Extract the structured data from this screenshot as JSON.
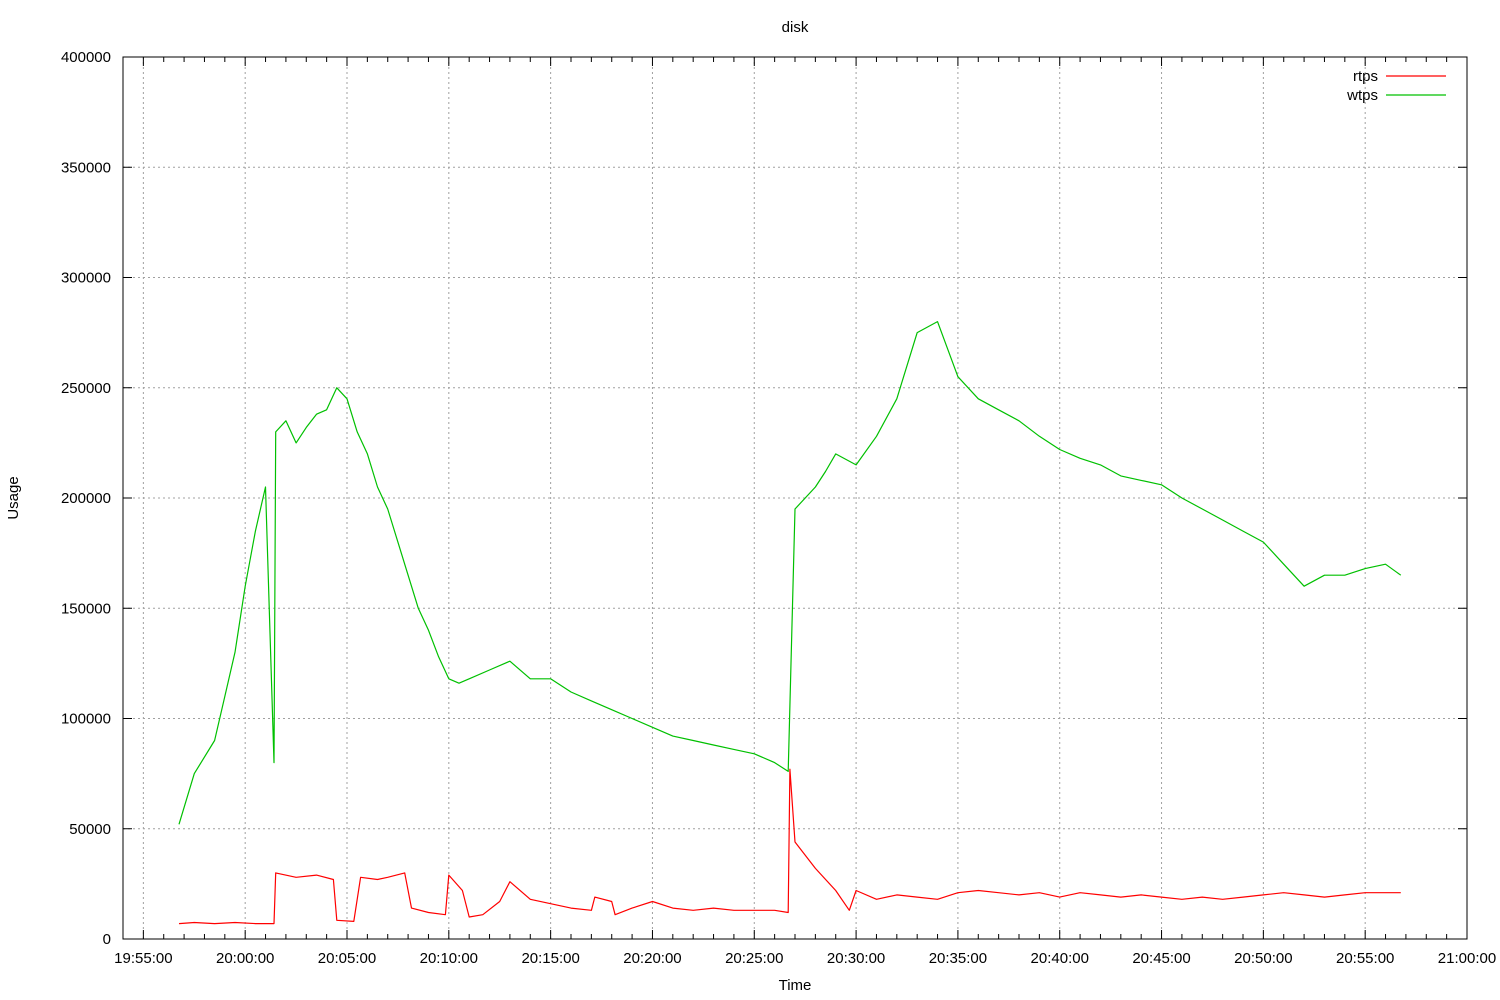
{
  "chart_data": {
    "type": "line",
    "title": "disk",
    "xlabel": "Time",
    "ylabel": "Usage",
    "xlim": [
      "19:54:00",
      "21:00:00"
    ],
    "ylim": [
      0,
      400000
    ],
    "x_ticks": [
      "19:55:00",
      "20:00:00",
      "20:05:00",
      "20:10:00",
      "20:15:00",
      "20:20:00",
      "20:25:00",
      "20:30:00",
      "20:35:00",
      "20:40:00",
      "20:45:00",
      "20:50:00",
      "20:55:00",
      "21:00:00"
    ],
    "y_ticks": [
      0,
      50000,
      100000,
      150000,
      200000,
      250000,
      300000,
      350000,
      400000
    ],
    "y_tick_labels": [
      "0",
      "50000",
      "100000",
      "150000",
      "200000",
      "250000",
      "300000",
      "350000",
      "400000"
    ],
    "grid": true,
    "legend_position": "top-right",
    "series": [
      {
        "name": "rtps",
        "color": "#ff0000",
        "x": [
          "19:56:45",
          "19:57:30",
          "19:58:30",
          "19:59:30",
          "20:00:30",
          "20:01:25",
          "20:01:30",
          "20:02:30",
          "20:03:30",
          "20:04:20",
          "20:04:30",
          "20:05:20",
          "20:05:40",
          "20:06:30",
          "20:07:00",
          "20:07:50",
          "20:08:10",
          "20:09:00",
          "20:09:50",
          "20:10:00",
          "20:10:40",
          "20:11:00",
          "20:11:40",
          "20:12:30",
          "20:13:00",
          "20:14:00",
          "20:15:00",
          "20:16:00",
          "20:17:00",
          "20:17:10",
          "20:18:00",
          "20:18:10",
          "20:19:00",
          "20:20:00",
          "20:21:00",
          "20:22:00",
          "20:23:00",
          "20:24:00",
          "20:25:00",
          "20:26:00",
          "20:26:40",
          "20:26:45",
          "20:27:00",
          "20:28:00",
          "20:29:00",
          "20:29:40",
          "20:30:00",
          "20:31:00",
          "20:32:00",
          "20:33:00",
          "20:34:00",
          "20:35:00",
          "20:36:00",
          "20:37:00",
          "20:38:00",
          "20:39:00",
          "20:40:00",
          "20:41:00",
          "20:42:00",
          "20:43:00",
          "20:44:00",
          "20:45:00",
          "20:46:00",
          "20:47:00",
          "20:48:00",
          "20:49:00",
          "20:50:00",
          "20:51:00",
          "20:52:00",
          "20:53:00",
          "20:54:00",
          "20:55:00",
          "20:56:00",
          "20:56:45"
        ],
        "y": [
          7000,
          7500,
          7000,
          7500,
          7000,
          7000,
          30000,
          28000,
          29000,
          27000,
          8500,
          8000,
          28000,
          27000,
          28000,
          30000,
          14000,
          12000,
          11000,
          29000,
          22000,
          10000,
          11000,
          17000,
          26000,
          18000,
          16000,
          14000,
          13000,
          19000,
          17000,
          11000,
          14000,
          17000,
          14000,
          13000,
          14000,
          13000,
          13000,
          13000,
          12000,
          77000,
          44000,
          32000,
          22000,
          13000,
          22000,
          18000,
          20000,
          19000,
          18000,
          21000,
          22000,
          21000,
          20000,
          21000,
          19000,
          21000,
          20000,
          19000,
          20000,
          19000,
          18000,
          19000,
          18000,
          19000,
          20000,
          21000,
          20000,
          19000,
          20000,
          21000,
          21000,
          21000
        ]
      },
      {
        "name": "wtps",
        "color": "#00c000",
        "x": [
          "19:56:45",
          "19:57:30",
          "19:58:30",
          "19:59:00",
          "19:59:30",
          "20:00:00",
          "20:00:30",
          "20:01:00",
          "20:01:25",
          "20:01:30",
          "20:02:00",
          "20:02:30",
          "20:03:00",
          "20:03:30",
          "20:04:00",
          "20:04:30",
          "20:05:00",
          "20:05:30",
          "20:06:00",
          "20:06:30",
          "20:07:00",
          "20:07:30",
          "20:08:00",
          "20:08:30",
          "20:09:00",
          "20:09:30",
          "20:10:00",
          "20:10:30",
          "20:11:00",
          "20:12:00",
          "20:13:00",
          "20:14:00",
          "20:15:00",
          "20:16:00",
          "20:17:00",
          "20:18:00",
          "20:19:00",
          "20:20:00",
          "20:21:00",
          "20:22:00",
          "20:23:00",
          "20:24:00",
          "20:25:00",
          "20:26:00",
          "20:26:40",
          "20:27:00",
          "20:28:00",
          "20:28:30",
          "20:29:00",
          "20:30:00",
          "20:31:00",
          "20:32:00",
          "20:33:00",
          "20:34:00",
          "20:35:00",
          "20:36:00",
          "20:37:00",
          "20:38:00",
          "20:39:00",
          "20:40:00",
          "20:41:00",
          "20:42:00",
          "20:43:00",
          "20:44:00",
          "20:45:00",
          "20:46:00",
          "20:47:00",
          "20:48:00",
          "20:49:00",
          "20:50:00",
          "20:51:00",
          "20:52:00",
          "20:53:00",
          "20:54:00",
          "20:55:00",
          "20:56:00",
          "20:56:45"
        ],
        "y": [
          52000,
          75000,
          90000,
          110000,
          130000,
          160000,
          185000,
          205000,
          80000,
          230000,
          235000,
          225000,
          232000,
          238000,
          240000,
          250000,
          245000,
          230000,
          220000,
          205000,
          195000,
          180000,
          165000,
          150000,
          140000,
          128000,
          118000,
          116000,
          118000,
          122000,
          126000,
          118000,
          118000,
          112000,
          108000,
          104000,
          100000,
          96000,
          92000,
          90000,
          88000,
          86000,
          84000,
          80000,
          76000,
          195000,
          205000,
          212000,
          220000,
          215000,
          228000,
          245000,
          275000,
          280000,
          255000,
          245000,
          240000,
          235000,
          228000,
          222000,
          218000,
          215000,
          210000,
          208000,
          206000,
          200000,
          195000,
          190000,
          185000,
          180000,
          170000,
          160000,
          165000,
          165000,
          168000,
          170000,
          165000
        ]
      }
    ]
  }
}
